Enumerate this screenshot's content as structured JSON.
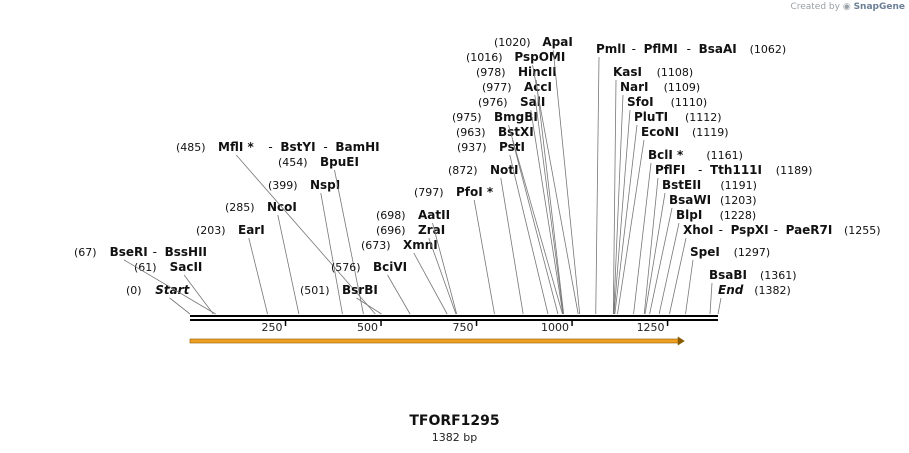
{
  "credit": {
    "prefix": "Created by",
    "brand": "SnapGene"
  },
  "title": "TFORF1295",
  "subtitle": "1382 bp",
  "axis": {
    "min": 0,
    "max": 1382,
    "ticks": [
      250,
      500,
      750,
      1000,
      1250
    ]
  },
  "feature": {
    "name": "orf-arrow",
    "start": 0,
    "end": 1295,
    "color": "#f0a020"
  },
  "sites": [
    {
      "pos": 0,
      "label": "(0)",
      "names": [
        "Start"
      ],
      "end": true
    },
    {
      "pos": 61,
      "label": "(61)",
      "names": [
        "SacII"
      ]
    },
    {
      "pos": 67,
      "label": "(67)",
      "names": [
        "BseRI",
        "BssHII"
      ]
    },
    {
      "pos": 203,
      "label": "(203)",
      "names": [
        "EarI"
      ]
    },
    {
      "pos": 285,
      "label": "(285)",
      "names": [
        "NcoI"
      ]
    },
    {
      "pos": 399,
      "label": "(399)",
      "names": [
        "NspI"
      ]
    },
    {
      "pos": 454,
      "label": "(454)",
      "names": [
        "BpuEI"
      ]
    },
    {
      "pos": 485,
      "label": "(485)",
      "names": [
        "MflI *",
        "BstYI",
        "BamHI"
      ]
    },
    {
      "pos": 501,
      "label": "(501)",
      "names": [
        "BsrBI"
      ]
    },
    {
      "pos": 576,
      "label": "(576)",
      "names": [
        "BciVI"
      ]
    },
    {
      "pos": 673,
      "label": "(673)",
      "names": [
        "XmnI"
      ]
    },
    {
      "pos": 696,
      "label": "(696)",
      "names": [
        "ZraI"
      ]
    },
    {
      "pos": 698,
      "label": "(698)",
      "names": [
        "AatII"
      ]
    },
    {
      "pos": 797,
      "label": "(797)",
      "names": [
        "PfoI *"
      ]
    },
    {
      "pos": 872,
      "label": "(872)",
      "names": [
        "NotI"
      ]
    },
    {
      "pos": 937,
      "label": "(937)",
      "names": [
        "PstI"
      ]
    },
    {
      "pos": 963,
      "label": "(963)",
      "names": [
        "BstXI"
      ]
    },
    {
      "pos": 975,
      "label": "(975)",
      "names": [
        "BmgBI"
      ]
    },
    {
      "pos": 976,
      "label": "(976)",
      "names": [
        "SalI"
      ]
    },
    {
      "pos": 977,
      "label": "(977)",
      "names": [
        "AccI"
      ]
    },
    {
      "pos": 978,
      "label": "(978)",
      "names": [
        "HincII"
      ]
    },
    {
      "pos": 1016,
      "label": "(1016)",
      "names": [
        "PspOMI"
      ]
    },
    {
      "pos": 1020,
      "label": "(1020)",
      "names": [
        "ApaI"
      ]
    },
    {
      "pos": 1062,
      "label": "(1062)",
      "names": [
        "PmlI",
        "PflMI",
        "BsaAI"
      ]
    },
    {
      "pos": 1108,
      "label": "(1108)",
      "names": [
        "KasI"
      ]
    },
    {
      "pos": 1109,
      "label": "(1109)",
      "names": [
        "NarI"
      ]
    },
    {
      "pos": 1110,
      "label": "(1110)",
      "names": [
        "SfoI"
      ]
    },
    {
      "pos": 1112,
      "label": "(1112)",
      "names": [
        "PluTI"
      ]
    },
    {
      "pos": 1119,
      "label": "(1119)",
      "names": [
        "EcoNI"
      ]
    },
    {
      "pos": 1161,
      "label": "(1161)",
      "names": [
        "BclI *"
      ]
    },
    {
      "pos": 1189,
      "label": "(1189)",
      "names": [
        "PflFI",
        "Tth111I"
      ]
    },
    {
      "pos": 1191,
      "label": "(1191)",
      "names": [
        "BstEII"
      ]
    },
    {
      "pos": 1203,
      "label": "(1203)",
      "names": [
        "BsaWI"
      ]
    },
    {
      "pos": 1228,
      "label": "(1228)",
      "names": [
        "BlpI"
      ]
    },
    {
      "pos": 1255,
      "label": "(1255)",
      "names": [
        "XhoI",
        "PspXI",
        "PaeR7I"
      ]
    },
    {
      "pos": 1297,
      "label": "(1297)",
      "names": [
        "SpeI"
      ]
    },
    {
      "pos": 1361,
      "label": "(1361)",
      "names": [
        "BsaBI"
      ]
    },
    {
      "pos": 1382,
      "label": "(1382)",
      "names": [
        "End"
      ],
      "end": true
    }
  ]
}
